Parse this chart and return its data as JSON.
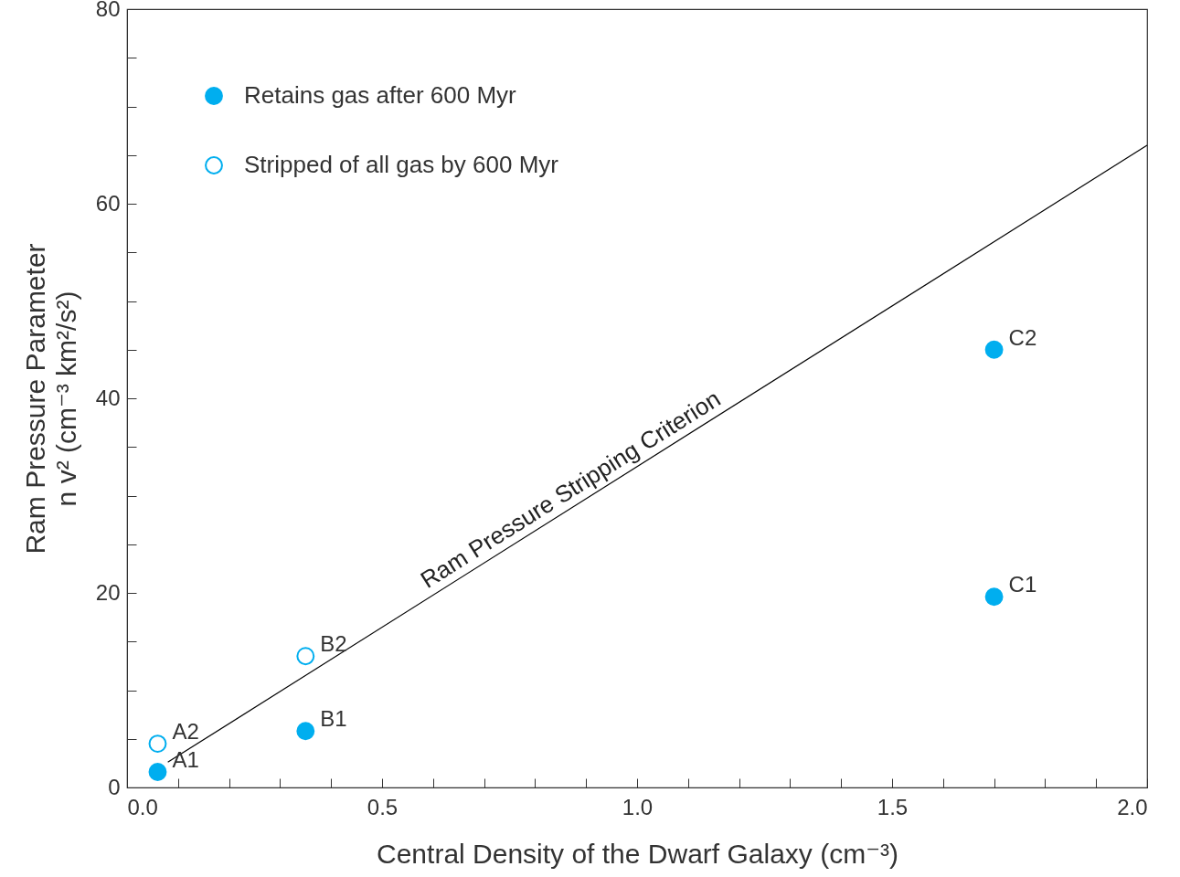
{
  "chart_data": {
    "type": "scatter",
    "xlabel": "Central Density of the Dwarf Galaxy (cm⁻³)",
    "ylabel": "Ram Pressure Parameter\nn v² (cm⁻³ km²/s²)",
    "xlim": [
      0,
      2
    ],
    "ylim": [
      0,
      80
    ],
    "xticks": [
      {
        "value": 0,
        "label": "0.0"
      },
      {
        "value": 0.1,
        "label": null
      },
      {
        "value": 0.2,
        "label": null
      },
      {
        "value": 0.3,
        "label": null
      },
      {
        "value": 0.4,
        "label": null
      },
      0.5,
      {
        "value": 0.6,
        "label": null
      },
      {
        "value": 0.7,
        "label": null
      },
      {
        "value": 0.8,
        "label": null
      },
      {
        "value": 0.9,
        "label": null
      },
      {
        "value": 1,
        "label": "1.0"
      },
      {
        "value": 1.1,
        "label": null
      },
      {
        "value": 1.2,
        "label": null
      },
      {
        "value": 1.3,
        "label": null
      },
      {
        "value": 1.4,
        "label": null
      },
      1.5,
      {
        "value": 1.6,
        "label": null
      },
      {
        "value": 1.7,
        "label": null
      },
      {
        "value": 1.8,
        "label": null
      },
      {
        "value": 1.9,
        "label": null
      },
      {
        "value": 2,
        "label": "2.0"
      }
    ],
    "yticks": [
      0,
      {
        "value": 5,
        "label": null
      },
      {
        "value": 10,
        "label": null
      },
      {
        "value": 15,
        "label": null
      },
      20,
      {
        "value": 25,
        "label": null
      },
      {
        "value": 30,
        "label": null
      },
      {
        "value": 35,
        "label": null
      },
      40,
      {
        "value": 45,
        "label": null
      },
      {
        "value": 50,
        "label": null
      },
      {
        "value": 55,
        "label": null
      },
      60,
      {
        "value": 65,
        "label": null
      },
      {
        "value": 70,
        "label": null
      },
      {
        "value": 75,
        "label": null
      },
      80
    ],
    "grid": false,
    "legend": "top left",
    "series": [
      {
        "name": "Retains gas after 600 Myr",
        "color": "#00aeef",
        "marker": "circle",
        "x": [
          0.06,
          0.35,
          1.7,
          1.7
        ],
        "values": [
          1.6,
          5.8,
          19.6,
          45.0
        ]
      },
      {
        "name": "Stripped of all gas by 600 Myr",
        "color": "#00aeef",
        "marker": "circle",
        "x": [
          0.06,
          0.35
        ],
        "values": [
          4.5,
          13.5
        ]
      },
      {
        "type": "line",
        "color": "#000000",
        "x": [
          0.08,
          2.0
        ],
        "values": [
          2.6,
          66
        ]
      }
    ],
    "annotations": [
      {
        "text": "A1",
        "x": 0.06,
        "y": 1.6
      },
      {
        "text": "A2",
        "x": 0.06,
        "y": 4.5
      },
      {
        "text": "B1",
        "x": 0.35,
        "y": 5.8
      },
      {
        "text": "B2",
        "x": 0.35,
        "y": 13.5
      },
      {
        "text": "C1",
        "x": 1.7,
        "y": 19.6
      },
      {
        "text": "C2",
        "x": 1.7,
        "y": 45.0
      },
      "Ram Pressure Stripping Criterion"
    ]
  }
}
